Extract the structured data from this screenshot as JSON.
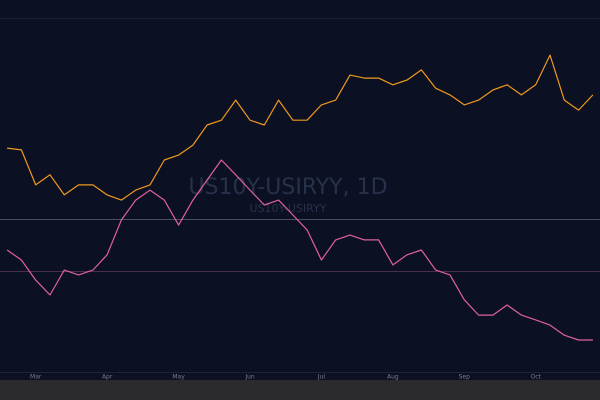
{
  "chart_data": {
    "type": "line",
    "watermark": "US10Y-USIRYY, 1D",
    "watermark_sub": "US10Y-USIRYY",
    "categories": [
      null,
      null,
      "Mar",
      null,
      null,
      null,
      null,
      "Apr",
      null,
      null,
      null,
      null,
      "May",
      null,
      null,
      null,
      null,
      "Jun",
      null,
      null,
      null,
      null,
      "Jul",
      null,
      null,
      null,
      null,
      "Aug",
      null,
      null,
      null,
      null,
      "Sep",
      null,
      null,
      null,
      null,
      "Oct",
      null,
      null,
      null,
      null
    ],
    "ylim": [
      0,
      100
    ],
    "series": [
      {
        "color": "#f0981e",
        "values": [
          60.2,
          59.7,
          50.3,
          53,
          47.6,
          50.3,
          50.3,
          47.6,
          46.2,
          48.9,
          50.3,
          57,
          58.3,
          61,
          66.4,
          67.7,
          73.1,
          67.7,
          66.4,
          73.1,
          67.7,
          67.7,
          71.8,
          73.1,
          79.8,
          79,
          79,
          77.2,
          78.5,
          81.2,
          76.3,
          74.5,
          71.8,
          73.1,
          75.8,
          77.2,
          74.5,
          77.2,
          85.2,
          73.1,
          70.4,
          74.5
        ]
      },
      {
        "color": "#e0609f",
        "values": [
          32.8,
          30.1,
          24.7,
          20.7,
          27.4,
          26.1,
          27.4,
          31.5,
          40.9,
          46.2,
          48.9,
          46.2,
          39.5,
          46.2,
          51.6,
          57,
          53,
          48.9,
          44.9,
          46.2,
          42.2,
          38.2,
          30.1,
          35.5,
          36.8,
          35.5,
          35.5,
          28.8,
          31.5,
          32.8,
          27.4,
          26.1,
          19.4,
          15.3,
          15.3,
          18,
          15.3,
          14,
          12.6,
          9.9,
          8.6,
          8.6
        ]
      }
    ]
  }
}
